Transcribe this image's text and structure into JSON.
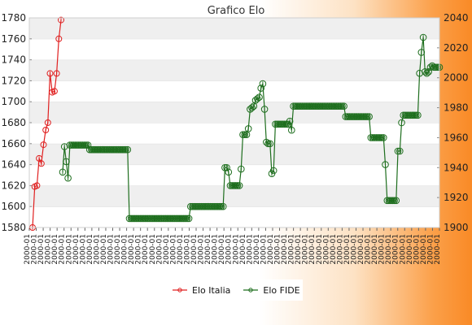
{
  "chart_data": {
    "type": "line",
    "title": "Grafico Elo",
    "grid": "horizontal bands",
    "legend_placement": "bottom-center",
    "y_left": {
      "ylim": [
        1580,
        1780
      ],
      "ticks": [
        1580,
        1600,
        1620,
        1640,
        1660,
        1680,
        1700,
        1720,
        1740,
        1760,
        1780
      ]
    },
    "y_right": {
      "ylim": [
        1900,
        2040
      ],
      "ticks": [
        1900,
        1920,
        1940,
        1960,
        1980,
        2000,
        2020,
        2040
      ]
    },
    "x_tick_label_pattern": "2000-01",
    "x_tick_count": 60,
    "series": [
      {
        "name": "Elo Italia",
        "axis": "left",
        "color": "#e02020",
        "values": [
          1580,
          1619,
          1620,
          1646,
          1641,
          1659,
          1673,
          1680,
          1727,
          1709,
          1710,
          1727,
          1760,
          1778
        ]
      },
      {
        "name": "Elo FIDE",
        "axis": "right",
        "color": "#1e6e1e",
        "values": [
          1937,
          1954,
          1944,
          1933,
          1955,
          1955,
          1955,
          1955,
          1955,
          1955,
          1955,
          1955,
          1955,
          1955,
          1955,
          1952,
          1952,
          1952,
          1952,
          1952,
          1952,
          1952,
          1952,
          1952,
          1952,
          1952,
          1952,
          1952,
          1952,
          1952,
          1952,
          1952,
          1952,
          1952,
          1952,
          1952,
          1952,
          1906,
          1906,
          1906,
          1906,
          1906,
          1906,
          1906,
          1906,
          1906,
          1906,
          1906,
          1906,
          1906,
          1906,
          1906,
          1906,
          1906,
          1906,
          1906,
          1906,
          1906,
          1906,
          1906,
          1906,
          1906,
          1906,
          1906,
          1906,
          1906,
          1906,
          1906,
          1906,
          1906,
          1906,
          1914,
          1914,
          1914,
          1914,
          1914,
          1914,
          1914,
          1914,
          1914,
          1914,
          1914,
          1914,
          1914,
          1914,
          1914,
          1914,
          1914,
          1914,
          1914,
          1940,
          1940,
          1937,
          1928,
          1928,
          1928,
          1928,
          1928,
          1928,
          1939,
          1962,
          1962,
          1962,
          1966,
          1979,
          1980,
          1981,
          1985,
          1986,
          1987,
          1993,
          1996,
          1979,
          1957,
          1956,
          1956,
          1936,
          1938,
          1969,
          1969,
          1969,
          1969,
          1969,
          1969,
          1969,
          1969,
          1971,
          1965,
          1981,
          1981,
          1981,
          1981,
          1981,
          1981,
          1981,
          1981,
          1981,
          1981,
          1981,
          1981,
          1981,
          1981,
          1981,
          1981,
          1981,
          1981,
          1981,
          1981,
          1981,
          1981,
          1981,
          1981,
          1981,
          1981,
          1981,
          1981,
          1981,
          1974,
          1974,
          1974,
          1974,
          1974,
          1974,
          1974,
          1974,
          1974,
          1974,
          1974,
          1974,
          1974,
          1974,
          1960,
          1960,
          1960,
          1960,
          1960,
          1960,
          1960,
          1960,
          1942,
          1918,
          1918,
          1918,
          1918,
          1918,
          1918,
          1951,
          1951,
          1970,
          1975,
          1975,
          1975,
          1975,
          1975,
          1975,
          1975,
          1975,
          1975,
          2003,
          2017,
          2027,
          2004,
          2003,
          2004,
          2007,
          2008,
          2007,
          2007,
          2007,
          2007
        ]
      }
    ]
  }
}
